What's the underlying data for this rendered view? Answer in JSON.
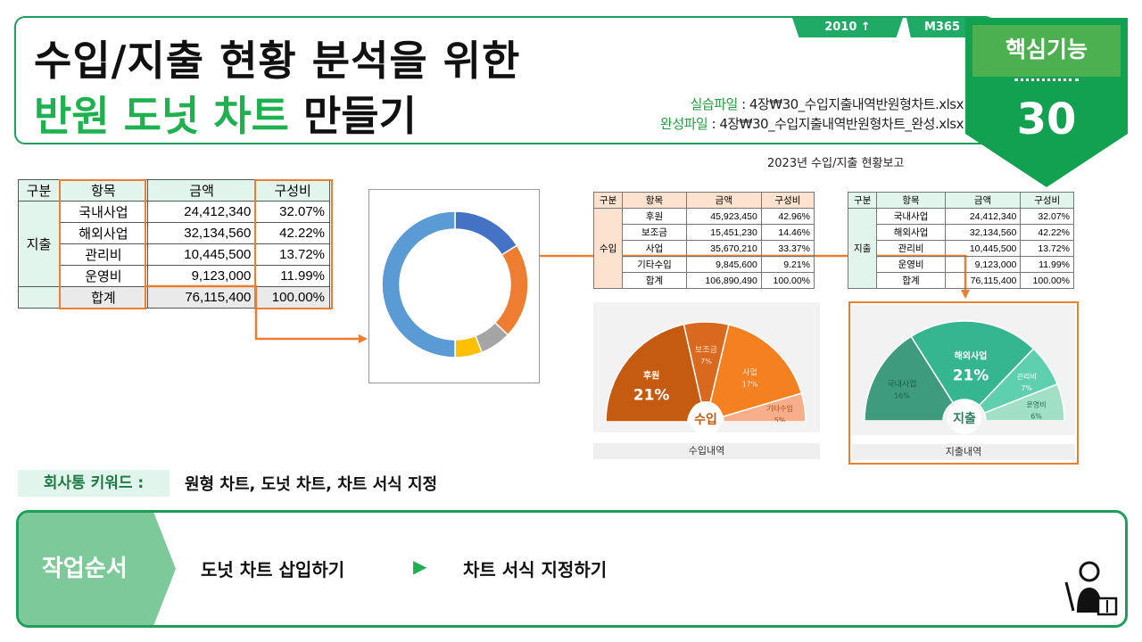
{
  "title": {
    "line1": "수입/지출 현황 분석을 위한",
    "line2_green": "반원 도넛 차트",
    "line2_black": " 만들기"
  },
  "ribbons": {
    "version": "2010 ↑",
    "m365": "M365"
  },
  "badge": {
    "label": "핵심기능",
    "number": "30"
  },
  "files": {
    "practice_label": "실습파일",
    "practice_name": " : 4장₩30_수입지출내역반원형차트.xlsx",
    "complete_label": "완성파일",
    "complete_name": " : 4장₩30_수입지출내역반원형차트_완성.xlsx"
  },
  "left_table": {
    "headers": [
      "구분",
      "항목",
      "금액",
      "구성비"
    ],
    "group": "지출",
    "rows": [
      {
        "item": "국내사업",
        "amount": "24,412,340",
        "ratio": "32.07%"
      },
      {
        "item": "해외사업",
        "amount": "32,134,560",
        "ratio": "42.22%"
      },
      {
        "item": "관리비",
        "amount": "10,445,500",
        "ratio": "13.72%"
      },
      {
        "item": "운영비",
        "amount": "9,123,000",
        "ratio": "11.99%"
      }
    ],
    "total": {
      "item": "합계",
      "amount": "76,115,400",
      "ratio": "100.00%"
    }
  },
  "report_title": "2023년 수입/지출 현황보고",
  "income_table": {
    "headers": [
      "구분",
      "항목",
      "금액",
      "구성비"
    ],
    "group": "수입",
    "rows": [
      {
        "item": "후원",
        "amount": "45,923,450",
        "ratio": "42.96%"
      },
      {
        "item": "보조금",
        "amount": "15,451,230",
        "ratio": "14.46%"
      },
      {
        "item": "사업",
        "amount": "35,670,210",
        "ratio": "33.37%"
      },
      {
        "item": "기타수입",
        "amount": "9,845,600",
        "ratio": "9.21%"
      }
    ],
    "total": {
      "item": "합계",
      "amount": "106,890,490",
      "ratio": "100.00%"
    }
  },
  "expense_table": {
    "headers": [
      "구분",
      "항목",
      "금액",
      "구성비"
    ],
    "group": "지출",
    "rows": [
      {
        "item": "국내사업",
        "amount": "24,412,340",
        "ratio": "32.07%"
      },
      {
        "item": "해외사업",
        "amount": "32,134,560",
        "ratio": "42.22%"
      },
      {
        "item": "관리비",
        "amount": "10,445,500",
        "ratio": "13.72%"
      },
      {
        "item": "운영비",
        "amount": "9,123,000",
        "ratio": "11.99%"
      }
    ],
    "total": {
      "item": "합계",
      "amount": "76,115,400",
      "ratio": "100.00%"
    }
  },
  "donut": {
    "colors": [
      "#4472c4",
      "#ed7d31",
      "#a5a5a5",
      "#ffc000",
      "#5b9bd5"
    ],
    "values": [
      32.07,
      42.22,
      13.72,
      11.99,
      100
    ]
  },
  "income_chart": {
    "caption": "수입내역",
    "center": "수입",
    "colors": [
      "#c55a11",
      "#d9691e",
      "#f4801f",
      "#f8ae8a"
    ],
    "slices": [
      {
        "name": "후원",
        "pct": "21%",
        "value": 42.96
      },
      {
        "name": "보조금",
        "pct": "7%",
        "value": 14.46
      },
      {
        "name": "사업",
        "pct": "17%",
        "value": 33.37
      },
      {
        "name": "기타수입",
        "pct": "5%",
        "value": 9.21
      }
    ]
  },
  "expense_chart": {
    "caption": "지출내역",
    "center": "지출",
    "colors": [
      "#3f9b7d",
      "#36b591",
      "#5fd0ad",
      "#a1dfc6"
    ],
    "slices": [
      {
        "name": "국내사업",
        "pct": "16%",
        "value": 32.07
      },
      {
        "name": "해외사업",
        "pct": "21%",
        "value": 42.22
      },
      {
        "name": "관리비",
        "pct": "7%",
        "value": 13.72
      },
      {
        "name": "운영비",
        "pct": "6%",
        "value": 11.99
      }
    ]
  },
  "keywords": {
    "label": "회사통 키워드 :",
    "text": "원형 차트, 도넛 차트, 차트 서식 지정"
  },
  "order": {
    "label": "작업순서",
    "step1": "도넛 차트 삽입하기",
    "arrow": "▶",
    "step2": "차트 서식 지정하기"
  }
}
